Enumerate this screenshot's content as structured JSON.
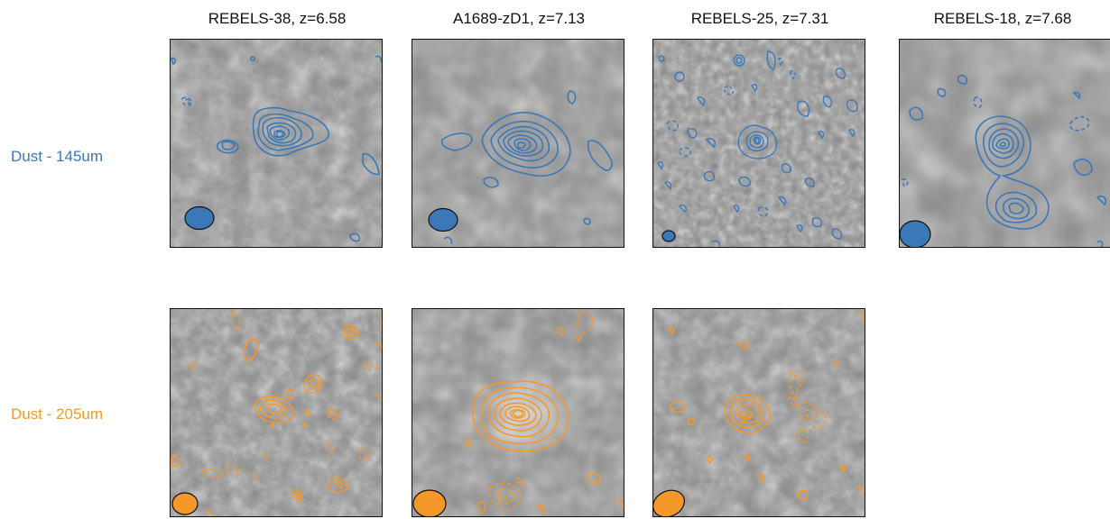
{
  "columns": [
    {
      "title": "REBELS-38, z=6.58"
    },
    {
      "title": "A1689-zD1, z=7.13"
    },
    {
      "title": "REBELS-25, z=7.31"
    },
    {
      "title": "REBELS-18, z=7.68"
    }
  ],
  "rows": [
    {
      "label": "Dust - 145um",
      "color": "#3b78b8"
    },
    {
      "label": "Dust - 205um",
      "color": "#f5982a"
    }
  ]
}
